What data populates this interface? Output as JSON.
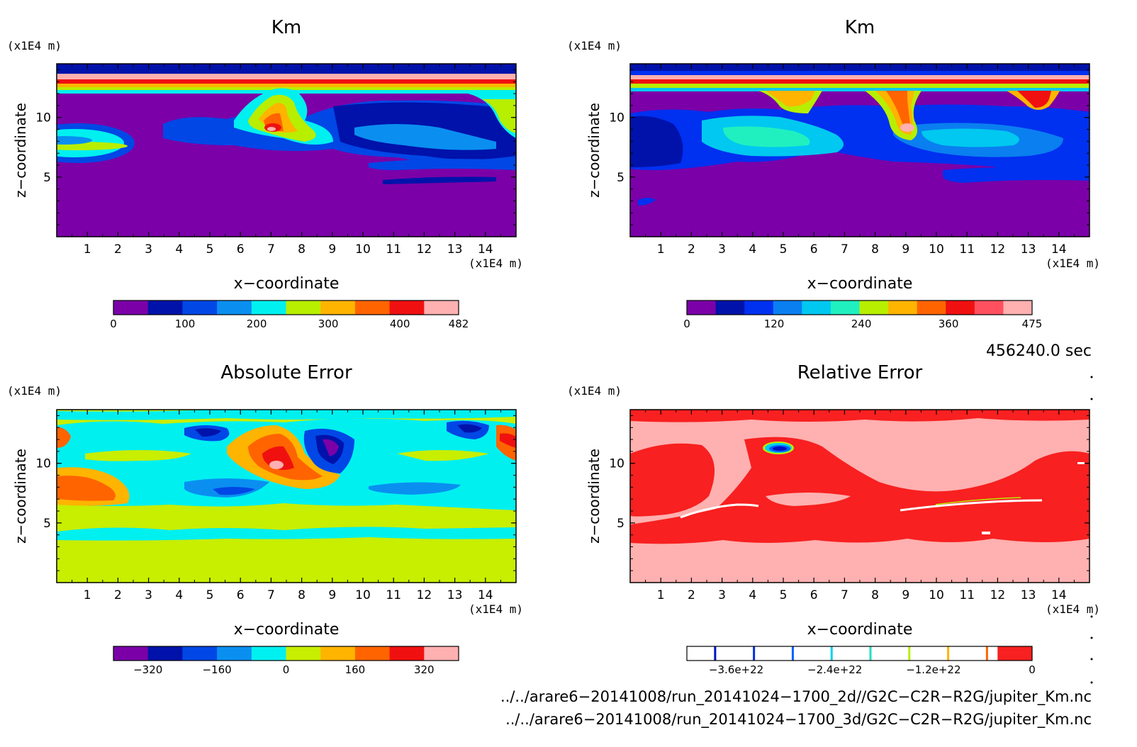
{
  "panels": [
    {
      "title": "Km",
      "unit_label": "(x1E4 m)",
      "x_unit_label": "(x1E4 m)",
      "xlabel": "x−coordinate",
      "ylabel": "z−coordinate",
      "x_ticks": [
        "1",
        "2",
        "3",
        "4",
        "5",
        "6",
        "7",
        "8",
        "9",
        "10",
        "11",
        "12",
        "13",
        "14"
      ],
      "y_ticks": [
        "5",
        "10"
      ],
      "colorbar": {
        "colors": [
          "#7b00a8",
          "#0012aa",
          "#0047e6",
          "#0a8ff0",
          "#00f0f0",
          "#b8ee00",
          "#ffb400",
          "#ff6400",
          "#f01010",
          "#ffb0b0"
        ],
        "tick_labels": [
          "0",
          "100",
          "200",
          "300",
          "400",
          "482"
        ]
      }
    },
    {
      "title": "Km",
      "unit_label": "(x1E4 m)",
      "x_unit_label": "(x1E4 m)",
      "xlabel": "x−coordinate",
      "ylabel": "z−coordinate",
      "x_ticks": [
        "1",
        "2",
        "3",
        "4",
        "5",
        "6",
        "7",
        "8",
        "9",
        "10",
        "11",
        "12",
        "13",
        "14"
      ],
      "y_ticks": [
        "5",
        "10"
      ],
      "colorbar": {
        "colors": [
          "#7b00a8",
          "#0012aa",
          "#0030f0",
          "#0a7ff0",
          "#00c8f0",
          "#20f0c0",
          "#b8ee00",
          "#ffb400",
          "#ff6400",
          "#f01010",
          "#ff5060",
          "#ffb0b0"
        ],
        "tick_labels": [
          "0",
          "120",
          "240",
          "360",
          "475"
        ]
      }
    },
    {
      "title": "Absolute Error",
      "unit_label": "(x1E4 m)",
      "x_unit_label": "(x1E4 m)",
      "xlabel": "x−coordinate",
      "ylabel": "z−coordinate",
      "x_ticks": [
        "1",
        "2",
        "3",
        "4",
        "5",
        "6",
        "7",
        "8",
        "9",
        "10",
        "11",
        "12",
        "13",
        "14"
      ],
      "y_ticks": [
        "5",
        "10"
      ],
      "colorbar": {
        "colors": [
          "#7b00a8",
          "#0012aa",
          "#0047e6",
          "#0a8ff0",
          "#00f0f0",
          "#c8ee00",
          "#ffb400",
          "#ff6400",
          "#f01010",
          "#ffb0b0"
        ],
        "tick_labels": [
          "−320",
          "−160",
          "0",
          "160",
          "320"
        ]
      }
    },
    {
      "title": "Relative Error",
      "unit_label": "(x1E4 m)",
      "x_unit_label": "(x1E4 m)",
      "xlabel": "x−coordinate",
      "ylabel": "z−coordinate",
      "x_ticks": [
        "1",
        "2",
        "3",
        "4",
        "5",
        "6",
        "7",
        "8",
        "9",
        "10",
        "11",
        "12",
        "13",
        "14"
      ],
      "y_ticks": [
        "5",
        "10"
      ],
      "colorbar": {
        "colors": [
          "#ffffff",
          "#ffffff",
          "#ffffff",
          "#ffffff",
          "#ffffff",
          "#ffffff",
          "#ffffff",
          "#ffffff",
          "#ffffff",
          "#f82020"
        ],
        "stripe_colors": [
          "#0010c0",
          "#0030e0",
          "#0060ff",
          "#00d0f0",
          "#20e0c0",
          "#b8ee00",
          "#ffb400",
          "#ff6400"
        ],
        "tick_labels": [
          "−3.6e+22",
          "−2.4e+22",
          "−1.2e+22",
          "0"
        ]
      }
    }
  ],
  "time_label": "456240.0 sec",
  "file_paths": [
    "../../arare6−20141008/run_20141024−1700_2d//G2C−C2R−R2G/jupiter_Km.nc",
    "../../arare6−20141008/run_20141024−1700_3d/G2C−C2R−R2G/jupiter_Km.nc"
  ],
  "chart_data": [
    {
      "type": "heatmap",
      "title": "Km",
      "xlabel": "x−coordinate",
      "ylabel": "z−coordinate",
      "x_unit": "(x1E4 m)",
      "y_unit": "(x1E4 m)",
      "xlim": [
        0,
        15
      ],
      "ylim": [
        0,
        14.5
      ],
      "colorbar_range": [
        0,
        482
      ]
    },
    {
      "type": "heatmap",
      "title": "Km",
      "xlabel": "x−coordinate",
      "ylabel": "z−coordinate",
      "x_unit": "(x1E4 m)",
      "y_unit": "(x1E4 m)",
      "xlim": [
        0,
        15
      ],
      "ylim": [
        0,
        14.5
      ],
      "colorbar_range": [
        0,
        475
      ]
    },
    {
      "type": "heatmap",
      "title": "Absolute Error",
      "xlabel": "x−coordinate",
      "ylabel": "z−coordinate",
      "x_unit": "(x1E4 m)",
      "y_unit": "(x1E4 m)",
      "xlim": [
        0,
        15
      ],
      "ylim": [
        0,
        14.5
      ],
      "colorbar_range": [
        -400,
        400
      ]
    },
    {
      "type": "heatmap",
      "title": "Relative Error",
      "xlabel": "x−coordinate",
      "ylabel": "z−coordinate",
      "x_unit": "(x1E4 m)",
      "y_unit": "(x1E4 m)",
      "xlim": [
        0,
        15
      ],
      "ylim": [
        0,
        14.5
      ],
      "colorbar_range": [
        -4.2e+22,
        0
      ]
    }
  ]
}
